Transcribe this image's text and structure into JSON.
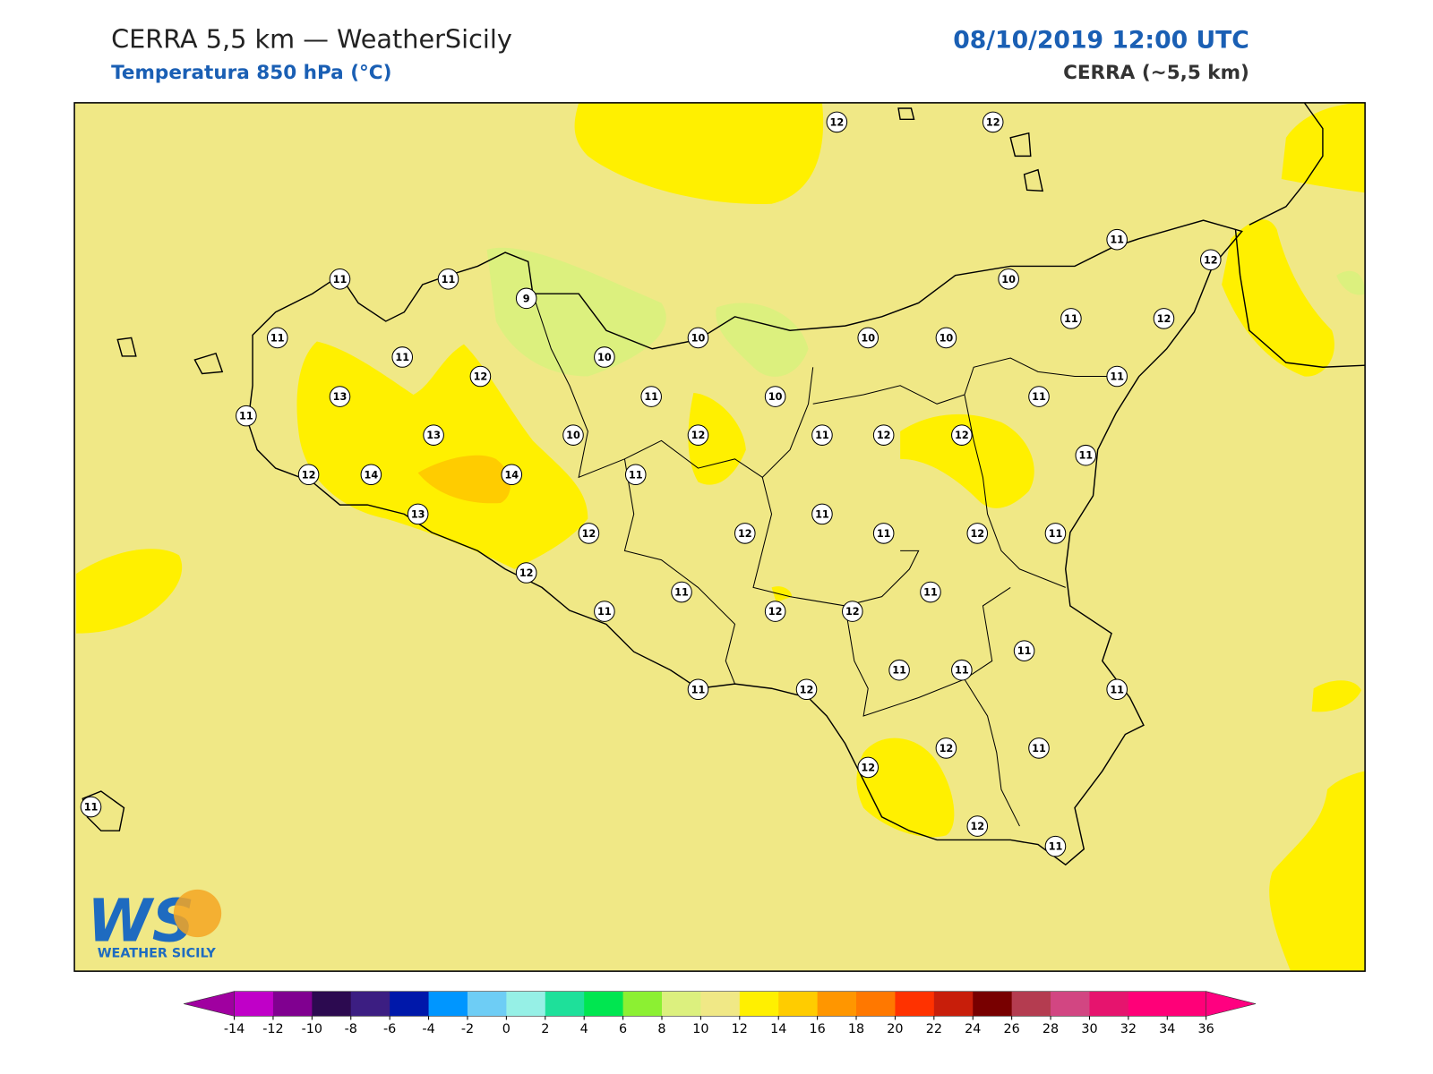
{
  "header": {
    "title": "CERRA 5,5 km — WeatherSicily",
    "subtitle": "Temperatura 850 hPa (°C)",
    "datetime": "08/10/2019 12:00 UTC",
    "model": "CERRA (~5,5 km)"
  },
  "stations": {
    "values": [
      12,
      12,
      11,
      12,
      11,
      11,
      9,
      10,
      11,
      11,
      10,
      10,
      10,
      10,
      11,
      12,
      12,
      13,
      11,
      10,
      11,
      11,
      11,
      13,
      10,
      12,
      11,
      12,
      12,
      11,
      12,
      14,
      14,
      11,
      13,
      12,
      12,
      11,
      11,
      12,
      11,
      12,
      11,
      11,
      11,
      12,
      12,
      11,
      11,
      11,
      11,
      12,
      11,
      12,
      11,
      12,
      11,
      12,
      11
    ]
  },
  "colorbar": {
    "ticks": [
      -14,
      -12,
      -10,
      -8,
      -6,
      -4,
      -2,
      0,
      2,
      4,
      6,
      8,
      10,
      12,
      14,
      16,
      18,
      20,
      22,
      24,
      26,
      28,
      30,
      32,
      34,
      36
    ],
    "colors": [
      "#c000c8",
      "#800090",
      "#2c0a50",
      "#3c1e82",
      "#0018aa",
      "#0096ff",
      "#6ecdf5",
      "#96f0e6",
      "#1ee09a",
      "#00e650",
      "#8cf032",
      "#dcf07e",
      "#f0e886",
      "#fff000",
      "#ffcc00",
      "#ff9600",
      "#ff7800",
      "#ff3200",
      "#c81e0a",
      "#780000",
      "#b43c50",
      "#d24682",
      "#e6146e",
      "#ff0078",
      "#ff0078"
    ],
    "under": "#a000a0",
    "over": "#ff0080"
  },
  "logo": {
    "mark": "WS",
    "text": "WEATHER SICILY"
  }
}
